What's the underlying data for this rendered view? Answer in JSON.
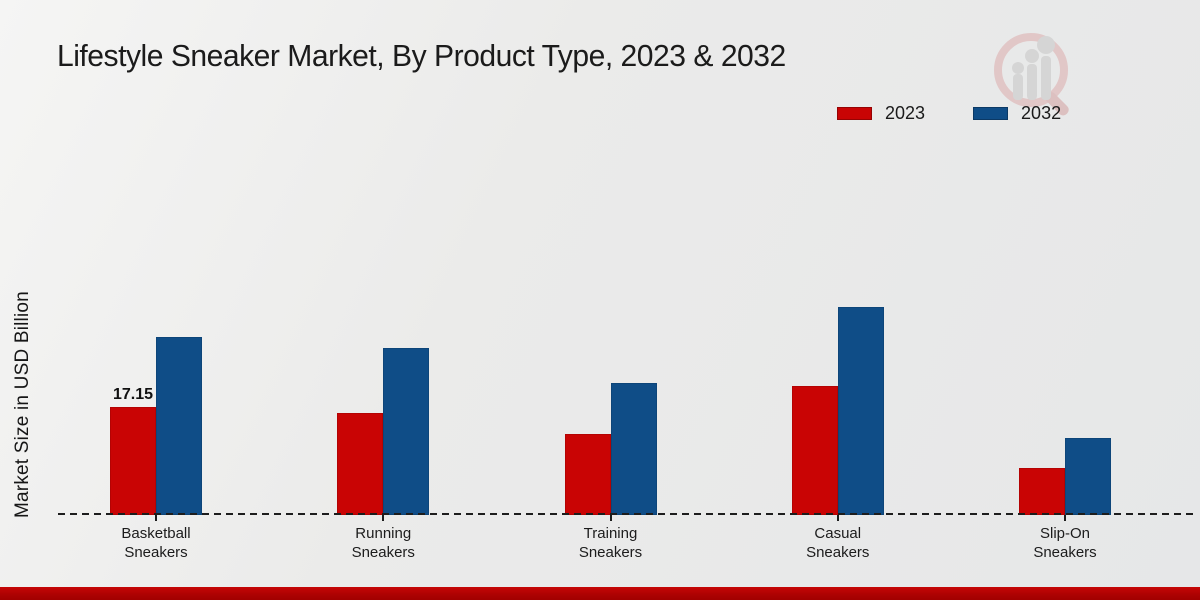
{
  "page": {
    "title": "Lifestyle Sneaker Market, By Product Type, 2023 & 2032"
  },
  "y_axis": {
    "label": "Market Size in USD Billion"
  },
  "icons": {
    "watermark": "market-research-magnifier-growth-logo"
  },
  "colors": {
    "series_2023": "#c90404",
    "series_2032": "#0f4d87",
    "footer_strip": "#b30303",
    "background": "#e9e9e8"
  },
  "chart_data": {
    "type": "bar",
    "title": "Lifestyle Sneaker Market, By Product Type, 2023 & 2032",
    "xlabel": "",
    "ylabel": "Market Size in USD Billion",
    "categories": [
      "Basketball Sneakers",
      "Running Sneakers",
      "Training Sneakers",
      "Casual Sneakers",
      "Slip-On Sneakers"
    ],
    "category_label_lines": [
      [
        "Basketball",
        "Sneakers"
      ],
      [
        "Running",
        "Sneakers"
      ],
      [
        "Training",
        "Sneakers"
      ],
      [
        "Casual",
        "Sneakers"
      ],
      [
        "Slip-On",
        "Sneakers"
      ]
    ],
    "series": [
      {
        "name": "2023",
        "color": "#c90404",
        "values": [
          17.15,
          16.2,
          12.9,
          20.5,
          7.5
        ]
      },
      {
        "name": "2032",
        "color": "#0f4d87",
        "values": [
          28.3,
          26.5,
          21.0,
          33.0,
          12.3
        ]
      }
    ],
    "data_labels": [
      {
        "series": "2023",
        "category_index": 0,
        "text": "17.15"
      }
    ],
    "axis_style": {
      "baseline": "dashed",
      "y_axis_ticks_visible": false,
      "grid": false
    },
    "legend_position": "top-right",
    "ylim": [
      0,
      35
    ]
  }
}
